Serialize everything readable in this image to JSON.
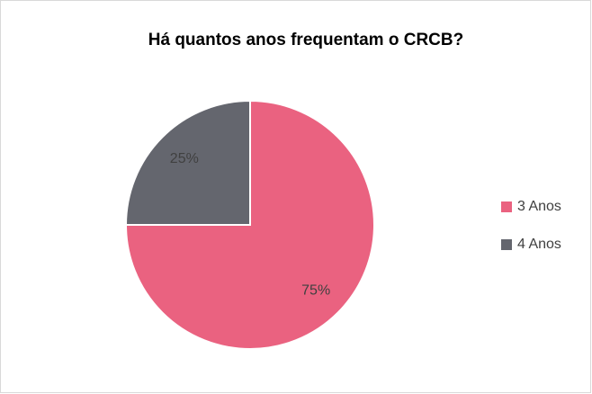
{
  "chart_data": {
    "type": "pie",
    "title": "Há quantos anos frequentam o CRCB?",
    "categories": [
      "3 Anos",
      "4 Anos"
    ],
    "values": [
      75,
      25
    ],
    "value_labels": [
      "75%",
      "25%"
    ],
    "colors": [
      "#ea6280",
      "#64666e"
    ],
    "legend": "right"
  }
}
